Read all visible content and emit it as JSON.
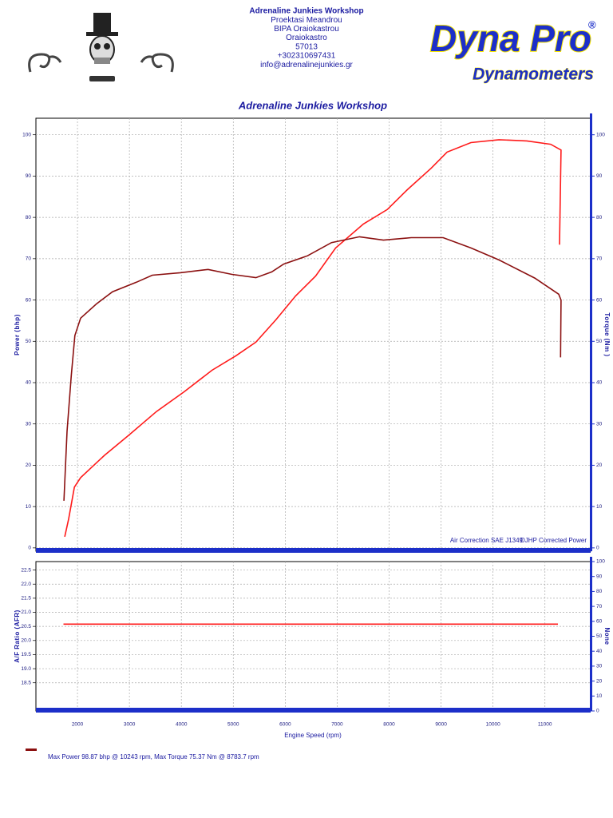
{
  "header": {
    "shop_lines": [
      "Adrenaline Junkies Workshop",
      "Proektasi Meandrou",
      "BIPA Oraiokastrou",
      "Oraiokastro",
      "57013",
      "+302310697431",
      "info@adrenalinejunkies.gr"
    ],
    "logo_text": "Dyna Pro",
    "logo_mark": "®",
    "logo_subtitle": "Dynamometers"
  },
  "chart_data": [
    {
      "type": "line",
      "title": "Adrenaline Junkies Workshop",
      "ylabel": "Power (bhp)",
      "y2label": "Torque (Nm )",
      "xlim": [
        1200,
        11880
      ],
      "xticks": [
        2000,
        3000,
        4000,
        5000,
        6000,
        7000,
        8000,
        9000,
        10000,
        11000
      ],
      "ylim": [
        -0.8,
        104
      ],
      "yticks": [
        0,
        10,
        20,
        30,
        40,
        50,
        60,
        70,
        80,
        90,
        100
      ],
      "y2lim": [
        -0.8,
        104
      ],
      "y2ticks": [
        0,
        10,
        20,
        30,
        40,
        50,
        60,
        70,
        80,
        90,
        100
      ],
      "grid": true,
      "annotations": [
        "Air Correction SAE J1349",
        "DJHP Corrected Power"
      ],
      "series": [
        {
          "color": "#ff1a1a",
          "x": [
            1755,
            1830,
            1940,
            2060,
            2520,
            2980,
            3520,
            4055,
            4590,
            5050,
            5435,
            5820,
            6200,
            6585,
            6970,
            7505,
            7965,
            8350,
            8810,
            9115,
            9575,
            10115,
            10650,
            11110,
            11310,
            11280
          ],
          "values": [
            2.7,
            7,
            14.7,
            17,
            22.4,
            27.2,
            33,
            37.8,
            43,
            46.5,
            49.8,
            55.2,
            61,
            65.8,
            72.6,
            78.4,
            81.9,
            86.7,
            91.9,
            95.8,
            98.1,
            98.8,
            98.5,
            97.7,
            96.3,
            73.4
          ]
        },
        {
          "color": "#8b1010",
          "axis": "y2",
          "x": [
            1740,
            1800,
            1880,
            1950,
            2060,
            2370,
            2675,
            3135,
            3440,
            3980,
            4515,
            4975,
            5435,
            5740,
            5970,
            6430,
            6890,
            7430,
            7890,
            8425,
            9040,
            9575,
            10115,
            10805,
            11265,
            11310,
            11300
          ],
          "values": [
            11.4,
            28.2,
            41.7,
            51.4,
            55.6,
            59.1,
            62,
            64.3,
            66,
            66.6,
            67.4,
            66.2,
            65.4,
            66.8,
            68.7,
            70.7,
            73.9,
            75.3,
            74.5,
            75.1,
            75.1,
            72.6,
            69.7,
            65.3,
            61.4,
            60,
            46.1
          ]
        }
      ]
    },
    {
      "type": "line",
      "ylabel": "A/F Ratio (AFR)",
      "y2label": "None",
      "xlabel": "Engine Speed (rpm)",
      "xlim": [
        1200,
        11880
      ],
      "xticks": [
        2000,
        3000,
        4000,
        5000,
        6000,
        7000,
        8000,
        9000,
        10000,
        11000
      ],
      "ylim": [
        17.5,
        22.8
      ],
      "yticks": [
        18.5,
        {
          "value": 19,
          "label": "19.0"
        },
        19.5,
        {
          "value": 20,
          "label": "20.0"
        },
        20.5,
        {
          "value": 21,
          "label": "21.0"
        },
        21.5,
        {
          "value": 22,
          "label": "22.0"
        },
        22.5
      ],
      "y2lim": [
        0,
        100
      ],
      "y2ticks": [
        0,
        10,
        20,
        30,
        40,
        50,
        60,
        70,
        80,
        90,
        100
      ],
      "grid": true,
      "note": "Max Power 98.87 bhp @ 10243 rpm, Max Torque 75.37 Nm @ 8783.7 rpm",
      "series": [
        {
          "color": "#ff1a1a",
          "x": [
            1730,
            11250
          ],
          "values": [
            20.58,
            20.58
          ]
        }
      ]
    }
  ]
}
